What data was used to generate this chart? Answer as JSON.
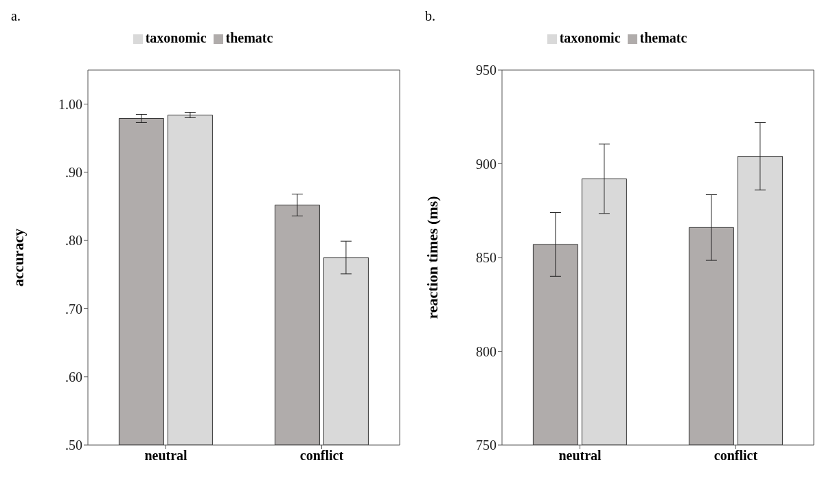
{
  "chart_data": [
    {
      "type": "bar",
      "title": "a.",
      "ylabel": "accuracy",
      "categories": [
        "neutral",
        "conflict"
      ],
      "legend": "top",
      "series": [
        {
          "name": "thematc",
          "color": "#b0acab",
          "values": [
            0.979,
            0.852
          ],
          "errors": [
            0.006,
            0.016
          ]
        },
        {
          "name": "taxonomic",
          "color": "#d9d9d9",
          "values": [
            0.984,
            0.775
          ],
          "errors": [
            0.004,
            0.024
          ]
        }
      ],
      "ylim": [
        0.5,
        1.05
      ],
      "yticks": [
        {
          "value": 0.5,
          "label": ".50"
        },
        {
          "value": 0.6,
          "label": ".60"
        },
        {
          "value": 0.7,
          "label": ".70"
        },
        {
          "value": 0.8,
          "label": ".80"
        },
        {
          "value": 0.9,
          "label": ".90"
        },
        {
          "value": 1.0,
          "label": "1.00"
        }
      ]
    },
    {
      "type": "bar",
      "title": "b.",
      "ylabel": "reaction times (ms)",
      "categories": [
        "neutral",
        "conflict"
      ],
      "legend": "top",
      "series": [
        {
          "name": "thematc",
          "color": "#b0acab",
          "values": [
            857,
            866
          ],
          "errors": [
            17,
            17.5
          ]
        },
        {
          "name": "taxonomic",
          "color": "#d9d9d9",
          "values": [
            892,
            904
          ],
          "errors": [
            18.5,
            18
          ]
        }
      ],
      "ylim": [
        750,
        950
      ],
      "yticks": [
        750,
        800,
        850,
        900,
        950
      ]
    }
  ]
}
